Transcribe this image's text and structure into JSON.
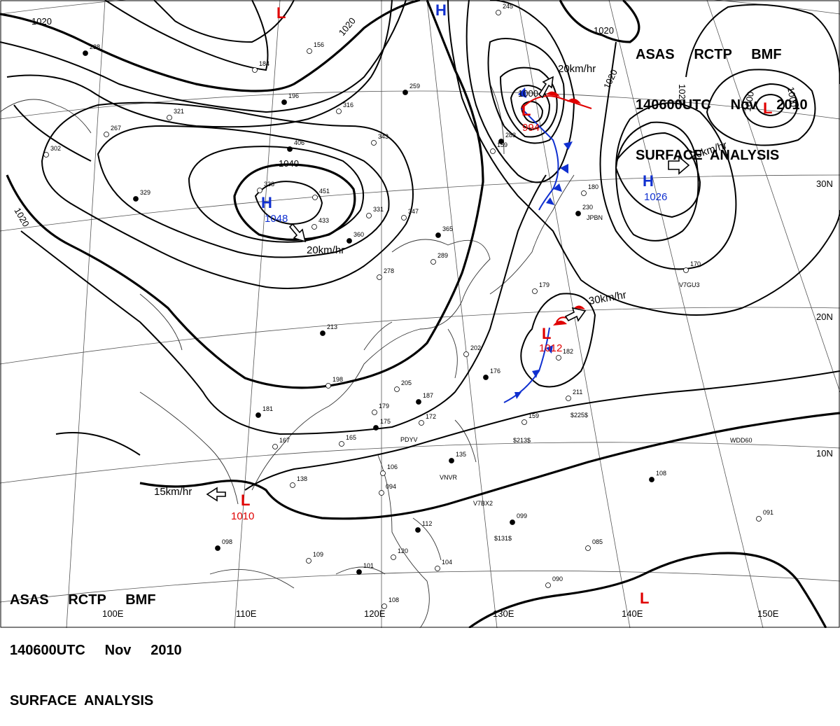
{
  "title": {
    "line1": "ASAS     RCTP     BMF",
    "line2": "140600UTC     Nov     2010",
    "line3": "SURFACE  ANALYSIS"
  },
  "centers": [
    {
      "type": "H",
      "pressure": "1048",
      "color": "#1030d0"
    },
    {
      "type": "H",
      "pressure": "1026",
      "color": "#1030d0"
    },
    {
      "type": "H",
      "pressure": "",
      "color": "#1030d0"
    },
    {
      "type": "L",
      "pressure": "994",
      "color": "#e00000"
    },
    {
      "type": "L",
      "pressure": "1012",
      "color": "#e00000"
    },
    {
      "type": "L",
      "pressure": "1010",
      "color": "#e00000"
    },
    {
      "type": "L",
      "pressure": "",
      "color": "#e00000"
    },
    {
      "type": "L",
      "pressure": "",
      "color": "#e00000"
    },
    {
      "type": "L",
      "pressure": "",
      "color": "#e00000"
    }
  ],
  "isobar_labels": [
    "1020",
    "1020",
    "1040",
    "1020",
    "1020",
    "1020",
    "1000",
    "1020",
    "1000",
    "1000"
  ],
  "motion_labels": [
    "20km/hr",
    "20km/hr",
    "20km/hr",
    "30km/hr",
    "15km/hr"
  ],
  "longitude_labels": [
    "100E",
    "110E",
    "120E",
    "130E",
    "140E",
    "150E"
  ],
  "latitude_labels": [
    "30N",
    "20N",
    "10N"
  ],
  "station_ids": [
    "JPBN",
    "V7GU3",
    "PDYV",
    "VNVR",
    "V7BX2",
    "WDD60",
    "$225$",
    "$213$",
    "$131$"
  ],
  "station_values": [
    "259",
    "316",
    "343",
    "406",
    "451",
    "433",
    "360",
    "331",
    "347",
    "365",
    "289",
    "278",
    "213",
    "202",
    "205",
    "187",
    "172",
    "179",
    "175",
    "165",
    "167",
    "181",
    "198",
    "138",
    "135",
    "106",
    "094",
    "112",
    "120",
    "104",
    "101",
    "108",
    "109",
    "098",
    "159",
    "211",
    "099",
    "085",
    "090",
    "108",
    "091",
    "170",
    "230",
    "159",
    "179",
    "176",
    "182",
    "338",
    "196",
    "184",
    "156",
    "238",
    "267",
    "302",
    "329",
    "321",
    "245",
    "283",
    "180"
  ],
  "colors": {
    "high": "#1030d0",
    "low": "#e00000",
    "isobar": "#000000",
    "grid": "#555555"
  }
}
